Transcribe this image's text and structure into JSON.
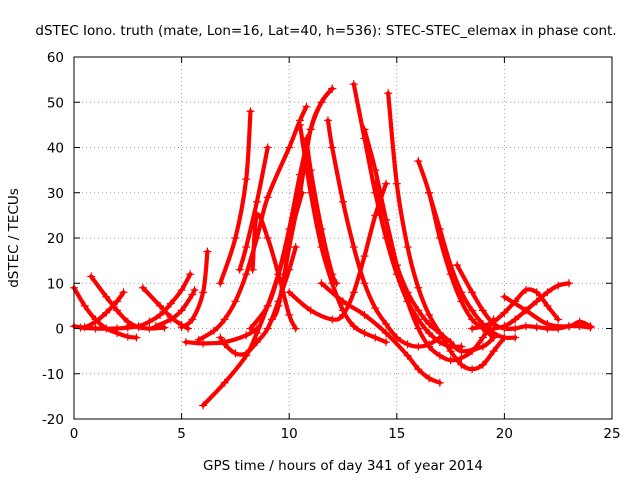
{
  "chart_data": {
    "type": "scatter",
    "title": "dSTEC Iono. truth (mate, Lon=16, Lat=40, h=536): STEC-STEC_elemax in phase cont.",
    "xlabel": "GPS time / hours of day 341 of year 2014",
    "ylabel": "dSTEC  / TECUs",
    "xlim": [
      0,
      25
    ],
    "ylim": [
      -20,
      60
    ],
    "xticks": [
      0,
      5,
      10,
      15,
      20,
      25
    ],
    "yticks": [
      -20,
      -10,
      0,
      10,
      20,
      30,
      40,
      50,
      60
    ],
    "grid": true,
    "marker": "+",
    "color": "#ff0000",
    "series": [
      {
        "x": [
          0.0,
          0.5,
          1.0,
          1.5,
          2.0,
          2.5,
          2.9
        ],
        "y": [
          9,
          5,
          2,
          0,
          -1,
          -1.8,
          -2
        ]
      },
      {
        "x": [
          0.0,
          0.5,
          1.0,
          1.5,
          2.0,
          2.3
        ],
        "y": [
          0.5,
          0.3,
          1.5,
          3.5,
          6.0,
          8.0
        ]
      },
      {
        "x": [
          0.8,
          1.5,
          2.0,
          2.5,
          3.0,
          3.5,
          4.2
        ],
        "y": [
          11.5,
          7,
          4,
          1.5,
          0.3,
          0,
          0.2
        ]
      },
      {
        "x": [
          0.3,
          1.0,
          2.0,
          2.5,
          3.0
        ],
        "y": [
          0.2,
          0,
          0,
          0.2,
          0.4
        ]
      },
      {
        "x": [
          2.5,
          3.0,
          3.5,
          4.0,
          4.5,
          5.0,
          5.4
        ],
        "y": [
          0.5,
          0.5,
          1.5,
          3,
          5.5,
          8.5,
          12
        ]
      },
      {
        "x": [
          3.2,
          4.0,
          4.5,
          5.0,
          5.3
        ],
        "y": [
          9,
          5,
          2.5,
          0.8,
          0
        ]
      },
      {
        "x": [
          3.8,
          4.5,
          5.0,
          5.5,
          5.6
        ],
        "y": [
          0.5,
          2,
          4,
          7.5,
          8.5
        ]
      },
      {
        "x": [
          5.0,
          5.5,
          6.0,
          6.2
        ],
        "y": [
          0.3,
          2,
          8,
          17
        ]
      },
      {
        "x": [
          5.2,
          6.0,
          7.0,
          8.0,
          8.5
        ],
        "y": [
          -3,
          -3.3,
          -3,
          -1.5,
          0
        ]
      },
      {
        "x": [
          5.8,
          6.5,
          7.0,
          7.5,
          8.0,
          8.5,
          9.0,
          10.0,
          10.5,
          10.8
        ],
        "y": [
          -2.5,
          -0.5,
          2,
          6,
          12,
          20,
          29,
          40,
          46,
          49
        ]
      },
      {
        "x": [
          6.0,
          7.0,
          8.0,
          8.5,
          9.0,
          9.5,
          10.0,
          10.6
        ],
        "y": [
          -17,
          -12,
          -6,
          -1,
          5,
          12,
          20,
          30
        ]
      },
      {
        "x": [
          6.8,
          7.0,
          7.5,
          8.0,
          8.5,
          9.0,
          9.5,
          10.0,
          10.3
        ],
        "y": [
          -2,
          -3.5,
          -5.5,
          -5.5,
          -3,
          0,
          6,
          13,
          18
        ]
      },
      {
        "x": [
          6.8,
          7.5,
          8.0,
          8.2
        ],
        "y": [
          10,
          20,
          33,
          48
        ]
      },
      {
        "x": [
          7.7,
          8.0,
          8.5,
          9.0
        ],
        "y": [
          13,
          18,
          28,
          40
        ]
      },
      {
        "x": [
          8.2,
          9.0,
          9.5,
          10.0,
          10.5,
          11.0,
          11.5,
          12.0
        ],
        "y": [
          0,
          5,
          12,
          22,
          34,
          44,
          50,
          53
        ]
      },
      {
        "x": [
          8.3,
          8.5,
          9.0,
          9.5,
          10.0,
          10.3
        ],
        "y": [
          13,
          25,
          20,
          12,
          3,
          0
        ]
      },
      {
        "x": [
          9.2,
          9.5,
          10.0,
          10.5,
          11.0,
          11.5,
          12.0
        ],
        "y": [
          2,
          5,
          18,
          30,
          44,
          50,
          53
        ]
      },
      {
        "x": [
          10.5,
          11.0,
          11.5,
          12.0,
          12.5,
          13.0,
          13.5,
          14.0,
          14.5
        ],
        "y": [
          45,
          30,
          18,
          10,
          4,
          0.5,
          -1,
          -2,
          -3
        ]
      },
      {
        "x": [
          10.8,
          11.0,
          11.5,
          12.0,
          12.2
        ],
        "y": [
          42,
          35,
          22,
          12,
          10
        ]
      },
      {
        "x": [
          11.8,
          12.0,
          12.5,
          13.0,
          13.5,
          14.0,
          14.5,
          15.0,
          15.5,
          16.0,
          16.5,
          17.0
        ],
        "y": [
          46,
          40,
          28,
          18,
          10,
          4.5,
          1,
          -2,
          -3.5,
          -4,
          -3.5,
          -2
        ]
      },
      {
        "x": [
          10.0,
          11.0,
          12.0,
          12.5,
          13.0,
          13.5,
          14.0,
          14.5
        ],
        "y": [
          8,
          4,
          2,
          3,
          8,
          16,
          25,
          32
        ]
      },
      {
        "x": [
          13.0,
          13.5,
          14.0,
          14.5,
          15.0,
          15.5,
          16.0,
          16.5,
          17.0,
          17.5,
          18.0
        ],
        "y": [
          54,
          42,
          30,
          20,
          12,
          6,
          2,
          -1,
          -3,
          -4,
          -4
        ]
      },
      {
        "x": [
          13.5,
          14.0,
          14.5,
          15.0,
          15.5,
          16.0,
          16.5,
          17.0,
          17.5,
          18.0,
          19.0,
          19.5
        ],
        "y": [
          44,
          35,
          24,
          14,
          8,
          4,
          1,
          -1,
          -3,
          -5,
          -4,
          -2
        ]
      },
      {
        "x": [
          14.0,
          14.5,
          15.0,
          15.5,
          16.0,
          16.5,
          17.0,
          17.5,
          18.0,
          18.5,
          19.0,
          19.5
        ],
        "y": [
          32,
          24,
          14,
          6,
          0,
          -4,
          -6,
          -7,
          -6.5,
          -5,
          -2,
          2
        ]
      },
      {
        "x": [
          14.6,
          15.0,
          15.5,
          16.0,
          16.5,
          17.0,
          17.5,
          18.0,
          18.5,
          19.0,
          19.5,
          20.0
        ],
        "y": [
          52,
          32,
          18,
          9,
          3,
          -1,
          -5,
          -8,
          -9,
          -8,
          -5,
          -2
        ]
      },
      {
        "x": [
          11.5,
          12.5,
          13.5,
          14.5,
          15.5,
          16.0,
          16.5,
          17.0
        ],
        "y": [
          10,
          6,
          3,
          -1,
          -6,
          -9,
          -11,
          -12
        ]
      },
      {
        "x": [
          16.0,
          16.5,
          17.0,
          17.5,
          18.0,
          18.5,
          19.0,
          19.5
        ],
        "y": [
          37,
          30,
          20,
          12,
          6,
          2,
          0,
          -2
        ]
      },
      {
        "x": [
          16.5,
          17.0,
          17.5,
          18.0,
          18.5,
          19.0,
          19.5,
          20.0,
          20.5
        ],
        "y": [
          30,
          22,
          14,
          8,
          4,
          1,
          -1,
          -2,
          -2
        ]
      },
      {
        "x": [
          17.8,
          18.5,
          19.0,
          19.5,
          20.0,
          20.5,
          21.0,
          21.5,
          22.0
        ],
        "y": [
          14,
          8,
          4,
          1,
          0,
          0,
          0.5,
          0.3,
          0
        ]
      },
      {
        "x": [
          18.5,
          19.0,
          19.5,
          20.0,
          20.5,
          21.0,
          21.5,
          22.0,
          22.5
        ],
        "y": [
          0,
          0.5,
          1.5,
          3.5,
          6,
          8.5,
          8,
          5,
          2
        ]
      },
      {
        "x": [
          19.5,
          20.0,
          20.5,
          21.0,
          21.5,
          22.0,
          22.5,
          23.0
        ],
        "y": [
          0,
          0.5,
          2,
          4,
          6,
          8,
          9.5,
          10
        ]
      },
      {
        "x": [
          20.0,
          21.0,
          22.0,
          23.0,
          23.5,
          24.0
        ],
        "y": [
          7,
          4,
          1,
          0.5,
          1.5,
          0.5
        ]
      },
      {
        "x": [
          22.0,
          22.5,
          23.0,
          23.5,
          24.0
        ],
        "y": [
          0,
          0,
          0.5,
          0.5,
          0.2
        ]
      }
    ]
  }
}
